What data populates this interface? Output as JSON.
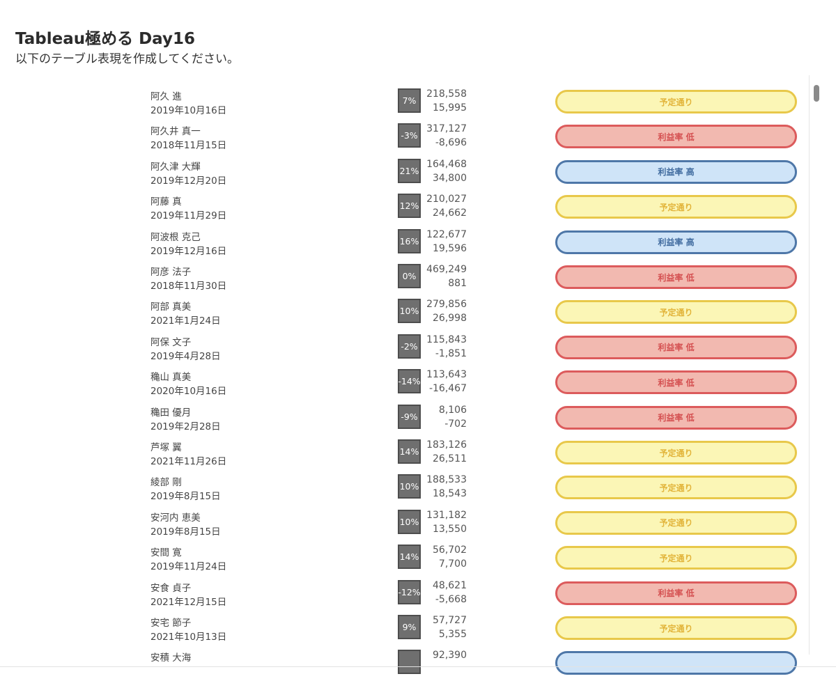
{
  "header": {
    "title": "Tableau極める Day16",
    "subtitle": "以下のテーブル表現を作成してください。"
  },
  "colors": {
    "予定通り": "#fbf6b6",
    "利益率 低": "#f2b9b0",
    "利益率 高": "#cfe4f8",
    "percent_box": "#6f6f6f"
  },
  "rows": [
    {
      "name": "阿久 進",
      "date": "2019年10月16日",
      "ratio": "7%",
      "sales": "218,558",
      "profit": "15,995",
      "status": "予定通り",
      "tone": "yellow"
    },
    {
      "name": "阿久井 真一",
      "date": "2018年11月15日",
      "ratio": "-3%",
      "sales": "317,127",
      "profit": "-8,696",
      "status": "利益率 低",
      "tone": "red"
    },
    {
      "name": "阿久津 大輝",
      "date": "2019年12月20日",
      "ratio": "21%",
      "sales": "164,468",
      "profit": "34,800",
      "status": "利益率 高",
      "tone": "blue"
    },
    {
      "name": "阿藤 真",
      "date": "2019年11月29日",
      "ratio": "12%",
      "sales": "210,027",
      "profit": "24,662",
      "status": "予定通り",
      "tone": "yellow"
    },
    {
      "name": "阿波根 克己",
      "date": "2019年12月16日",
      "ratio": "16%",
      "sales": "122,677",
      "profit": "19,596",
      "status": "利益率 高",
      "tone": "blue"
    },
    {
      "name": "阿彦 法子",
      "date": "2018年11月30日",
      "ratio": "0%",
      "sales": "469,249",
      "profit": "881",
      "status": "利益率 低",
      "tone": "red"
    },
    {
      "name": "阿部 真美",
      "date": "2021年1月24日",
      "ratio": "10%",
      "sales": "279,856",
      "profit": "26,998",
      "status": "予定通り",
      "tone": "yellow"
    },
    {
      "name": "阿保 文子",
      "date": "2019年4月28日",
      "ratio": "-2%",
      "sales": "115,843",
      "profit": "-1,851",
      "status": "利益率 低",
      "tone": "red"
    },
    {
      "name": "穐山 真美",
      "date": "2020年10月16日",
      "ratio": "-14%",
      "sales": "113,643",
      "profit": "-16,467",
      "status": "利益率 低",
      "tone": "red"
    },
    {
      "name": "穐田 優月",
      "date": "2019年2月28日",
      "ratio": "-9%",
      "sales": "8,106",
      "profit": "-702",
      "status": "利益率 低",
      "tone": "red"
    },
    {
      "name": "芦塚 翼",
      "date": "2021年11月26日",
      "ratio": "14%",
      "sales": "183,126",
      "profit": "26,511",
      "status": "予定通り",
      "tone": "yellow"
    },
    {
      "name": "綾部 剛",
      "date": "2019年8月15日",
      "ratio": "10%",
      "sales": "188,533",
      "profit": "18,543",
      "status": "予定通り",
      "tone": "yellow"
    },
    {
      "name": "安河内 恵美",
      "date": "2019年8月15日",
      "ratio": "10%",
      "sales": "131,182",
      "profit": "13,550",
      "status": "予定通り",
      "tone": "yellow"
    },
    {
      "name": "安間 寛",
      "date": "2019年11月24日",
      "ratio": "14%",
      "sales": "56,702",
      "profit": "7,700",
      "status": "予定通り",
      "tone": "yellow"
    },
    {
      "name": "安食 貞子",
      "date": "2021年12月15日",
      "ratio": "-12%",
      "sales": "48,621",
      "profit": "-5,668",
      "status": "利益率 低",
      "tone": "red"
    },
    {
      "name": "安宅 節子",
      "date": "2021年10月13日",
      "ratio": "9%",
      "sales": "57,727",
      "profit": "5,355",
      "status": "予定通り",
      "tone": "yellow"
    },
    {
      "name": "安積 大海",
      "date": "",
      "ratio": "",
      "sales": "92,390",
      "profit": "",
      "status": "",
      "tone": "blue"
    }
  ]
}
